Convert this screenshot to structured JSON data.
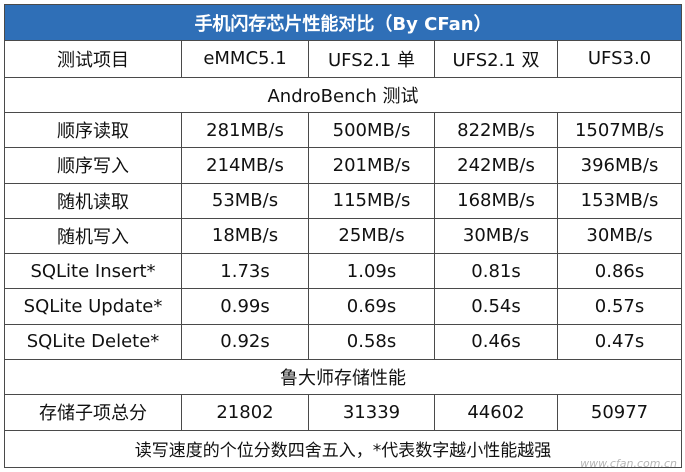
{
  "title": "手机闪存芯片性能对比（By CFan）",
  "header": [
    "测试项目",
    "eMMC5.1",
    "UFS2.1 单",
    "UFS2.1 双",
    "UFS3.0"
  ],
  "sections": [
    {
      "name": "AndroBench 测试",
      "rows": [
        {
          "label": "顺序读取",
          "values": [
            "281MB/s",
            "500MB/s",
            "822MB/s",
            "1507MB/s"
          ]
        },
        {
          "label": "顺序写入",
          "values": [
            "214MB/s",
            "201MB/s",
            "242MB/s",
            "396MB/s"
          ]
        },
        {
          "label": "随机读取",
          "values": [
            "53MB/s",
            "115MB/s",
            "168MB/s",
            "153MB/s"
          ]
        },
        {
          "label": "随机写入",
          "values": [
            "18MB/s",
            "25MB/s",
            "30MB/s",
            "30MB/s"
          ]
        },
        {
          "label": "SQLite Insert*",
          "values": [
            "1.73s",
            "1.09s",
            "0.81s",
            "0.86s"
          ]
        },
        {
          "label": "SQLite Update*",
          "values": [
            "0.99s",
            "0.69s",
            "0.54s",
            "0.57s"
          ]
        },
        {
          "label": "SQLite Delete*",
          "values": [
            "0.92s",
            "0.58s",
            "0.46s",
            "0.47s"
          ]
        }
      ]
    },
    {
      "name": "鲁大师存储性能",
      "rows": [
        {
          "label": "存储子项总分",
          "values": [
            "21802",
            "31339",
            "44602",
            "50977"
          ]
        }
      ]
    }
  ],
  "footnote": "读写速度的个位分数四舍五入，*代表数字越小性能越强",
  "watermark": "www.cfan.com.cn",
  "colors": {
    "title_bg": "#2f6fb7",
    "title_text": "#ffffff",
    "border": "#4a4a4a"
  }
}
